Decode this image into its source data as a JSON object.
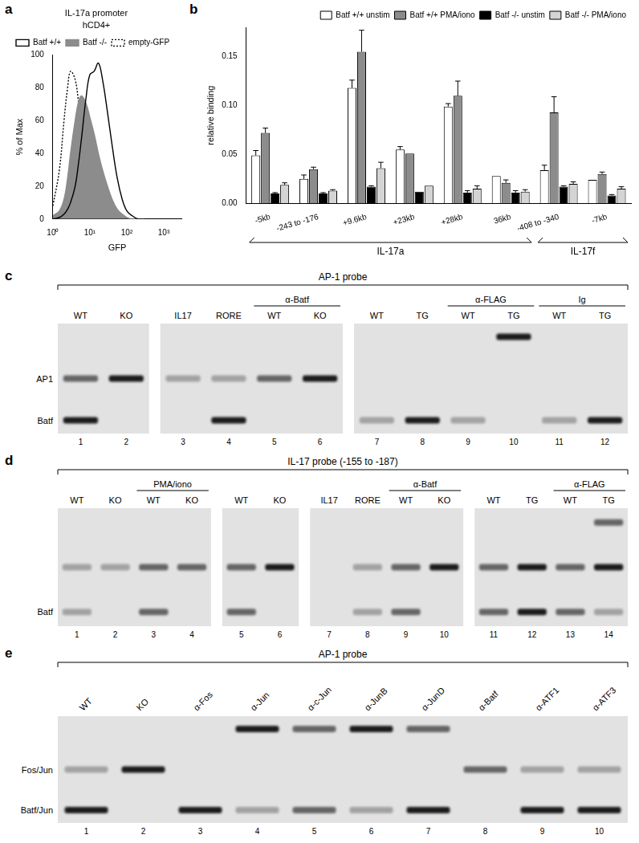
{
  "panel_letters": [
    "a",
    "b",
    "c",
    "d",
    "e"
  ],
  "chart_data": [
    {
      "type": "line",
      "title": "IL-17a promoter",
      "subtitle": "hCD4+",
      "x_label": "GFP",
      "y_label": "% of Max",
      "log": "x",
      "grid": false,
      "legend": "top-left",
      "x": [
        1,
        1.5,
        2,
        2.5,
        3,
        4,
        5,
        6,
        8,
        10,
        13,
        17,
        22,
        30,
        40,
        55,
        75,
        100,
        140,
        200,
        300
      ],
      "series": [
        {
          "name": "Batf +/+",
          "color": "#000000",
          "line_style": "solid",
          "values": [
            0,
            1,
            3,
            6,
            10,
            20,
            35,
            50,
            75,
            88,
            90,
            95,
            85,
            65,
            45,
            25,
            12,
            5,
            2,
            0,
            0
          ]
        },
        {
          "name": "Batf -/-",
          "color": "#8c8c8c",
          "type": "area",
          "line_style": "solid",
          "values": [
            2,
            5,
            12,
            25,
            40,
            60,
            72,
            75,
            70,
            62,
            52,
            40,
            30,
            20,
            12,
            6,
            3,
            1,
            0,
            0,
            0
          ]
        },
        {
          "name": "empty-GFP",
          "color": "#000000",
          "line_style": "dotted",
          "values": [
            8,
            30,
            60,
            80,
            90,
            85,
            70,
            55,
            38,
            25,
            14,
            8,
            4,
            2,
            1,
            0,
            0,
            0,
            0,
            0,
            0
          ]
        }
      ],
      "xlim": [
        1,
        3000
      ],
      "xticks": [
        {
          "value": 1,
          "label": "10⁰"
        },
        {
          "value": 10,
          "label": "10¹"
        },
        {
          "value": 100,
          "label": "10²"
        },
        {
          "value": 1000,
          "label": "10³"
        }
      ],
      "ylim": [
        0,
        100
      ],
      "yticks": [
        0,
        20,
        40,
        60,
        80,
        100
      ]
    },
    {
      "type": "bar",
      "y_label": "relative binding",
      "grid": false,
      "legend": "top-right",
      "categories": [
        "-5kb",
        "-243 to -176",
        "+9.6kb",
        "+23kb",
        "+28kb",
        "36kb",
        "-408 to -340",
        "-7kb"
      ],
      "series": [
        {
          "name": "Batf +/+ unstim",
          "color": "#ffffff",
          "values": [
            0.049,
            0.025,
            0.118,
            0.055,
            0.099,
            0.028,
            0.034,
            0.024
          ],
          "errors": [
            0.005,
            0.004,
            0.008,
            0.003,
            0.003,
            0,
            0.005,
            0
          ]
        },
        {
          "name": "Batf +/+ PMA/iono",
          "color": "#8c8c8c",
          "values": [
            0.072,
            0.035,
            0.155,
            0.051,
            0.11,
            0.021,
            0.093,
            0.03
          ],
          "errors": [
            0.005,
            0.002,
            0.022,
            0,
            0.015,
            0.003,
            0.016,
            0.002
          ]
        },
        {
          "name": "Batf -/- unstim",
          "color": "#000000",
          "values": [
            0.01,
            0.01,
            0.017,
            0.012,
            0.011,
            0.011,
            0.017,
            0.008
          ],
          "errors": [
            0.001,
            0.001,
            0.001,
            0,
            0.002,
            0.002,
            0.001,
            0.001
          ]
        },
        {
          "name": "Batf -/- PMA/iono",
          "color": "#d4d4d4",
          "values": [
            0.019,
            0.013,
            0.036,
            0.018,
            0.015,
            0.012,
            0.02,
            0.015
          ],
          "errors": [
            0.002,
            0.001,
            0.006,
            0,
            0.003,
            0.002,
            0.002,
            0.002
          ]
        }
      ],
      "groups": [
        {
          "name": "IL-17a",
          "from": "-5kb",
          "to": "36kb"
        },
        {
          "name": "IL-17f",
          "from": "-408 to -340",
          "to": "-7kb"
        }
      ],
      "ylim": [
        0,
        0.18
      ],
      "yticks": [
        {
          "value": 0,
          "label": "0.00"
        },
        {
          "value": 0.05,
          "label": "0.05"
        },
        {
          "value": 0.1,
          "label": "0.10"
        },
        {
          "value": 0.15,
          "label": "0.15"
        }
      ]
    }
  ],
  "gels": [
    {
      "title": "AP-1 probe",
      "rows": [
        {
          "label": null
        },
        {
          "label": "AP1"
        },
        {
          "label": "Batf"
        }
      ],
      "blocks": [
        [
          1,
          2
        ],
        [
          3,
          6
        ],
        [
          7,
          12
        ]
      ],
      "headers": [
        {
          "label": "α-Batf",
          "lanes": [
            5,
            6
          ]
        },
        {
          "label": "α-FLAG",
          "lanes": [
            9,
            10
          ]
        },
        {
          "label": "Ig",
          "lanes": [
            11,
            12
          ]
        }
      ],
      "lanes": [
        {
          "number": 1,
          "label": "WT",
          "bands": [
            0,
            2,
            3
          ]
        },
        {
          "number": 2,
          "label": "KO",
          "bands": [
            0,
            3,
            0
          ]
        },
        {
          "number": 3,
          "label": "IL17",
          "bands": [
            0,
            1,
            0
          ]
        },
        {
          "number": 4,
          "label": "RORE",
          "bands": [
            0,
            1,
            3
          ]
        },
        {
          "number": 5,
          "label": "WT",
          "bands": [
            0,
            2,
            0
          ]
        },
        {
          "number": 6,
          "label": "KO",
          "bands": [
            0,
            3,
            0
          ]
        },
        {
          "number": 7,
          "label": "WT",
          "bands": [
            0,
            0,
            1
          ]
        },
        {
          "number": 8,
          "label": "TG",
          "bands": [
            0,
            0,
            3
          ]
        },
        {
          "number": 9,
          "label": "WT",
          "bands": [
            0,
            0,
            1
          ]
        },
        {
          "number": 10,
          "label": "TG",
          "bands": [
            3,
            0,
            0
          ]
        },
        {
          "number": 11,
          "label": "WT",
          "bands": [
            0,
            0,
            1
          ]
        },
        {
          "number": 12,
          "label": "TG",
          "bands": [
            0,
            0,
            3
          ]
        }
      ]
    },
    {
      "title": "IL-17 probe (-155 to -187)",
      "rows": [
        {
          "label": null
        },
        {
          "label": null
        },
        {
          "label": "Batf"
        }
      ],
      "blocks": [
        [
          1,
          4
        ],
        [
          5,
          6
        ],
        [
          7,
          10
        ],
        [
          11,
          14
        ]
      ],
      "headers": [
        {
          "label": "PMA/iono",
          "lanes": [
            3,
            4
          ]
        },
        {
          "label": "α-Batf",
          "lanes": [
            9,
            10
          ]
        },
        {
          "label": "α-FLAG",
          "lanes": [
            13,
            14
          ]
        }
      ],
      "lanes": [
        {
          "number": 1,
          "label": "WT",
          "bands": [
            0,
            1,
            1
          ]
        },
        {
          "number": 2,
          "label": "KO",
          "bands": [
            0,
            1,
            0
          ]
        },
        {
          "number": 3,
          "label": "WT",
          "bands": [
            0,
            2,
            2
          ]
        },
        {
          "number": 4,
          "label": "KO",
          "bands": [
            0,
            2,
            0
          ]
        },
        {
          "number": 5,
          "label": "WT",
          "bands": [
            0,
            2,
            2
          ]
        },
        {
          "number": 6,
          "label": "KO",
          "bands": [
            0,
            3,
            0
          ]
        },
        {
          "number": 7,
          "label": "IL17",
          "bands": [
            0,
            0,
            0
          ]
        },
        {
          "number": 8,
          "label": "RORE",
          "bands": [
            0,
            1,
            1
          ]
        },
        {
          "number": 9,
          "label": "WT",
          "bands": [
            0,
            2,
            2
          ]
        },
        {
          "number": 10,
          "label": "KO",
          "bands": [
            0,
            3,
            0
          ]
        },
        {
          "number": 11,
          "label": "WT",
          "bands": [
            0,
            2,
            2
          ]
        },
        {
          "number": 12,
          "label": "TG",
          "bands": [
            0,
            3,
            3
          ]
        },
        {
          "number": 13,
          "label": "WT",
          "bands": [
            0,
            2,
            2
          ]
        },
        {
          "number": 14,
          "label": "TG",
          "bands": [
            2,
            3,
            1
          ]
        }
      ]
    },
    {
      "title": "AP-1 probe",
      "rows": [
        {
          "label": null
        },
        {
          "label": "Fos/Jun"
        },
        {
          "label": "Batf/Jun"
        }
      ],
      "blocks": [
        [
          1,
          10
        ]
      ],
      "headers": [],
      "lanes": [
        {
          "number": 1,
          "label": "WT",
          "bands": [
            0,
            1,
            3
          ]
        },
        {
          "number": 2,
          "label": "KO",
          "bands": [
            0,
            3,
            0
          ]
        },
        {
          "number": 3,
          "label": "α-Fos",
          "bands": [
            0,
            0,
            3
          ]
        },
        {
          "number": 4,
          "label": "α-Jun",
          "bands": [
            3,
            0,
            1
          ]
        },
        {
          "number": 5,
          "label": "α-c-Jun",
          "bands": [
            2,
            0,
            2
          ]
        },
        {
          "number": 6,
          "label": "α-JunB",
          "bands": [
            3,
            0,
            1
          ]
        },
        {
          "number": 7,
          "label": "α-JunD",
          "bands": [
            2,
            0,
            3
          ]
        },
        {
          "number": 8,
          "label": "α-Batf",
          "bands": [
            0,
            2,
            0
          ]
        },
        {
          "number": 9,
          "label": "α-ATF1",
          "bands": [
            0,
            1,
            3
          ]
        },
        {
          "number": 10,
          "label": "α-ATF3",
          "bands": [
            0,
            1,
            3
          ]
        }
      ]
    }
  ]
}
